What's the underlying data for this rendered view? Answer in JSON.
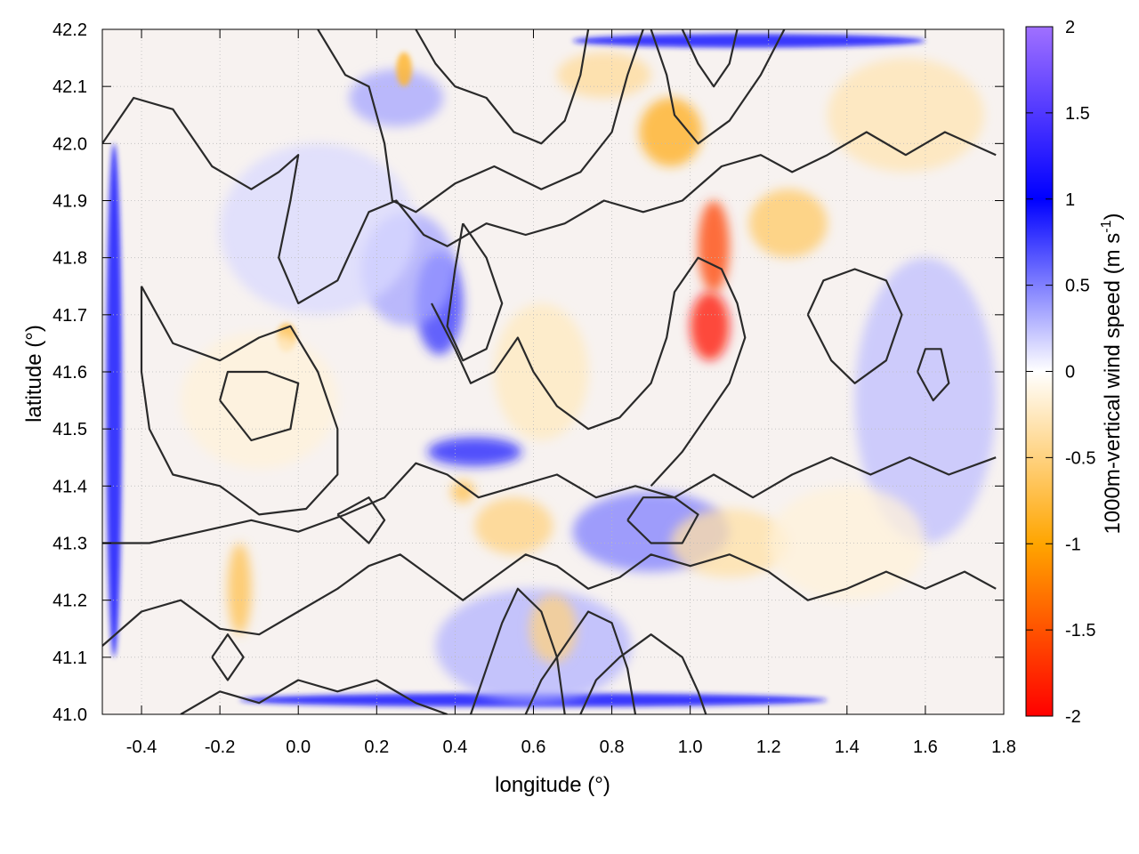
{
  "chart_data": {
    "type": "heatmap",
    "xlabel": "longitude (°)",
    "ylabel": "latitude (°)",
    "colorbar_label": "1000m-vertical wind speed (m s",
    "colorbar_label_sup": "-1",
    "colorbar_label_end": ")",
    "xlim": [
      -0.5,
      1.8
    ],
    "ylim": [
      41.0,
      42.2
    ],
    "clim": [
      -2,
      2
    ],
    "x_ticks": [
      -0.4,
      -0.2,
      0.0,
      0.2,
      0.4,
      0.6,
      0.8,
      1.0,
      1.2,
      1.4,
      1.6,
      1.8
    ],
    "x_tick_labels": [
      "-0.4",
      "-0.2",
      "0.0",
      "0.2",
      "0.4",
      "0.6",
      "0.8",
      "1.0",
      "1.2",
      "1.4",
      "1.6",
      "1.8"
    ],
    "y_ticks": [
      41.0,
      41.1,
      41.2,
      41.3,
      41.4,
      41.5,
      41.6,
      41.7,
      41.8,
      41.9,
      42.0,
      42.1,
      42.2
    ],
    "y_tick_labels": [
      "41.0",
      "41.1",
      "41.2",
      "41.3",
      "41.4",
      "41.5",
      "41.6",
      "41.7",
      "41.8",
      "41.9",
      "42.0",
      "42.1",
      "42.2"
    ],
    "colorbar_ticks": [
      -2,
      -1.5,
      -1,
      -0.5,
      0,
      0.5,
      1,
      1.5,
      2
    ],
    "colorbar_tick_labels": [
      "-2",
      "-1.5",
      "-1",
      "-0.5",
      "0",
      "0.5",
      "1",
      "1.5",
      "2"
    ],
    "colormap": [
      {
        "v": -2,
        "color": "#ff0000"
      },
      {
        "v": -1,
        "color": "#ffa500"
      },
      {
        "v": 0,
        "color": "#ffffff"
      },
      {
        "v": 1,
        "color": "#0000ff"
      },
      {
        "v": 2,
        "color": "#a070ff"
      }
    ],
    "grid": true,
    "features": [
      {
        "kind": "updraft",
        "x": -0.47,
        "y": 41.55,
        "rx": 0.02,
        "ry": 0.45,
        "value": 0.9
      },
      {
        "kind": "updraft",
        "x": 0.6,
        "y": 41.025,
        "rx": 0.75,
        "ry": 0.012,
        "value": 0.9
      },
      {
        "kind": "updraft",
        "x": 1.15,
        "y": 42.18,
        "rx": 0.45,
        "ry": 0.012,
        "value": 0.9
      },
      {
        "kind": "updraft",
        "x": 0.36,
        "y": 41.72,
        "rx": 0.06,
        "ry": 0.09,
        "value": 0.8
      },
      {
        "kind": "updraft",
        "x": 0.45,
        "y": 41.46,
        "rx": 0.12,
        "ry": 0.025,
        "value": 0.9
      },
      {
        "kind": "updraft",
        "x": 0.28,
        "y": 41.78,
        "rx": 0.12,
        "ry": 0.1,
        "value": 0.35
      },
      {
        "kind": "updraft",
        "x": 0.9,
        "y": 41.32,
        "rx": 0.2,
        "ry": 0.07,
        "value": 0.5
      },
      {
        "kind": "updraft",
        "x": 1.6,
        "y": 41.55,
        "rx": 0.18,
        "ry": 0.25,
        "value": 0.25
      },
      {
        "kind": "updraft",
        "x": 0.25,
        "y": 42.08,
        "rx": 0.12,
        "ry": 0.05,
        "value": 0.35
      },
      {
        "kind": "updraft",
        "x": 0.6,
        "y": 41.12,
        "rx": 0.25,
        "ry": 0.1,
        "value": 0.3
      },
      {
        "kind": "updraft",
        "x": 0.05,
        "y": 41.85,
        "rx": 0.25,
        "ry": 0.15,
        "value": 0.15
      },
      {
        "kind": "downdraft",
        "x": 1.05,
        "y": 41.68,
        "rx": 0.05,
        "ry": 0.06,
        "value": -1.9
      },
      {
        "kind": "downdraft",
        "x": 1.06,
        "y": 41.82,
        "rx": 0.04,
        "ry": 0.08,
        "value": -1.6
      },
      {
        "kind": "downdraft",
        "x": 0.95,
        "y": 42.02,
        "rx": 0.08,
        "ry": 0.06,
        "value": -0.9
      },
      {
        "kind": "downdraft",
        "x": 1.25,
        "y": 41.86,
        "rx": 0.1,
        "ry": 0.06,
        "value": -0.6
      },
      {
        "kind": "downdraft",
        "x": 0.78,
        "y": 42.12,
        "rx": 0.12,
        "ry": 0.04,
        "value": -0.4
      },
      {
        "kind": "downdraft",
        "x": -0.15,
        "y": 41.22,
        "rx": 0.03,
        "ry": 0.08,
        "value": -0.7
      },
      {
        "kind": "downdraft",
        "x": -0.03,
        "y": 41.66,
        "rx": 0.025,
        "ry": 0.025,
        "value": -0.7
      },
      {
        "kind": "downdraft",
        "x": 0.27,
        "y": 42.13,
        "rx": 0.02,
        "ry": 0.03,
        "value": -0.8
      },
      {
        "kind": "downdraft",
        "x": 0.55,
        "y": 41.33,
        "rx": 0.1,
        "ry": 0.05,
        "value": -0.5
      },
      {
        "kind": "downdraft",
        "x": 0.42,
        "y": 41.39,
        "rx": 0.03,
        "ry": 0.02,
        "value": -0.7
      },
      {
        "kind": "downdraft",
        "x": 1.1,
        "y": 41.3,
        "rx": 0.15,
        "ry": 0.06,
        "value": -0.35
      },
      {
        "kind": "downdraft",
        "x": 0.62,
        "y": 41.6,
        "rx": 0.12,
        "ry": 0.12,
        "value": -0.25
      },
      {
        "kind": "downdraft",
        "x": 0.65,
        "y": 41.15,
        "rx": 0.06,
        "ry": 0.06,
        "value": -0.5
      },
      {
        "kind": "downdraft",
        "x": -0.1,
        "y": 41.55,
        "rx": 0.2,
        "ry": 0.12,
        "value": -0.15
      },
      {
        "kind": "downdraft",
        "x": 1.55,
        "y": 42.05,
        "rx": 0.2,
        "ry": 0.1,
        "value": -0.3
      },
      {
        "kind": "downdraft",
        "x": 1.4,
        "y": 41.3,
        "rx": 0.2,
        "ry": 0.1,
        "value": -0.15
      }
    ],
    "contours": [
      [
        [
          -0.5,
          42.0
        ],
        [
          -0.42,
          42.08
        ],
        [
          -0.32,
          42.06
        ],
        [
          -0.22,
          41.96
        ],
        [
          -0.12,
          41.92
        ],
        [
          -0.05,
          41.95
        ],
        [
          0.0,
          41.98
        ],
        [
          -0.02,
          41.9
        ],
        [
          -0.05,
          41.8
        ],
        [
          0.0,
          41.72
        ],
        [
          0.1,
          41.76
        ],
        [
          0.18,
          41.88
        ],
        [
          0.25,
          41.9
        ],
        [
          0.32,
          41.84
        ],
        [
          0.38,
          41.82
        ],
        [
          0.48,
          41.86
        ],
        [
          0.58,
          41.84
        ],
        [
          0.68,
          41.86
        ],
        [
          0.78,
          41.9
        ],
        [
          0.88,
          41.88
        ],
        [
          0.98,
          41.9
        ],
        [
          1.08,
          41.96
        ],
        [
          1.18,
          41.98
        ],
        [
          1.26,
          41.95
        ],
        [
          1.35,
          41.98
        ],
        [
          1.45,
          42.02
        ],
        [
          1.55,
          41.98
        ],
        [
          1.65,
          42.02
        ],
        [
          1.78,
          41.98
        ]
      ],
      [
        [
          0.05,
          42.2
        ],
        [
          0.12,
          42.12
        ],
        [
          0.18,
          42.1
        ],
        [
          0.22,
          42.0
        ],
        [
          0.24,
          41.9
        ],
        [
          0.3,
          41.88
        ],
        [
          0.4,
          41.93
        ],
        [
          0.5,
          41.96
        ],
        [
          0.62,
          41.92
        ],
        [
          0.72,
          41.95
        ],
        [
          0.8,
          42.02
        ],
        [
          0.84,
          42.12
        ],
        [
          0.88,
          42.2
        ]
      ],
      [
        [
          0.3,
          42.2
        ],
        [
          0.35,
          42.14
        ],
        [
          0.4,
          42.1
        ],
        [
          0.48,
          42.08
        ],
        [
          0.55,
          42.02
        ],
        [
          0.62,
          42.0
        ],
        [
          0.68,
          42.04
        ],
        [
          0.72,
          42.12
        ],
        [
          0.74,
          42.2
        ]
      ],
      [
        [
          0.9,
          42.2
        ],
        [
          0.94,
          42.12
        ],
        [
          0.96,
          42.05
        ],
        [
          1.02,
          42.0
        ],
        [
          1.1,
          42.04
        ],
        [
          1.18,
          42.12
        ],
        [
          1.24,
          42.2
        ]
      ],
      [
        [
          0.98,
          42.2
        ],
        [
          1.02,
          42.14
        ],
        [
          1.06,
          42.1
        ],
        [
          1.1,
          42.14
        ],
        [
          1.12,
          42.2
        ]
      ],
      [
        [
          -0.4,
          41.75
        ],
        [
          -0.32,
          41.65
        ],
        [
          -0.2,
          41.62
        ],
        [
          -0.1,
          41.66
        ],
        [
          -0.02,
          41.68
        ],
        [
          0.05,
          41.6
        ],
        [
          0.1,
          41.5
        ],
        [
          0.1,
          41.42
        ],
        [
          0.02,
          41.36
        ],
        [
          -0.1,
          41.35
        ],
        [
          -0.2,
          41.4
        ],
        [
          -0.32,
          41.42
        ],
        [
          -0.38,
          41.5
        ],
        [
          -0.4,
          41.6
        ],
        [
          -0.4,
          41.75
        ]
      ],
      [
        [
          -0.2,
          41.55
        ],
        [
          -0.12,
          41.48
        ],
        [
          -0.02,
          41.5
        ],
        [
          0.0,
          41.58
        ],
        [
          -0.08,
          41.6
        ],
        [
          -0.18,
          41.6
        ],
        [
          -0.2,
          41.55
        ]
      ],
      [
        [
          -0.5,
          41.3
        ],
        [
          -0.38,
          41.3
        ],
        [
          -0.25,
          41.32
        ],
        [
          -0.12,
          41.34
        ],
        [
          0.0,
          41.32
        ],
        [
          0.12,
          41.35
        ],
        [
          0.22,
          41.38
        ],
        [
          0.3,
          41.44
        ],
        [
          0.38,
          41.42
        ],
        [
          0.46,
          41.38
        ],
        [
          0.56,
          41.4
        ],
        [
          0.66,
          41.42
        ],
        [
          0.76,
          41.38
        ],
        [
          0.86,
          41.4
        ],
        [
          0.96,
          41.38
        ],
        [
          1.06,
          41.42
        ],
        [
          1.16,
          41.38
        ],
        [
          1.26,
          41.42
        ],
        [
          1.36,
          41.45
        ],
        [
          1.46,
          41.42
        ],
        [
          1.56,
          41.45
        ],
        [
          1.66,
          41.42
        ],
        [
          1.78,
          41.45
        ]
      ],
      [
        [
          -0.5,
          41.12
        ],
        [
          -0.4,
          41.18
        ],
        [
          -0.3,
          41.2
        ],
        [
          -0.2,
          41.15
        ],
        [
          -0.1,
          41.14
        ],
        [
          0.0,
          41.18
        ],
        [
          0.1,
          41.22
        ],
        [
          0.18,
          41.26
        ],
        [
          0.26,
          41.28
        ],
        [
          0.34,
          41.24
        ],
        [
          0.42,
          41.2
        ],
        [
          0.5,
          41.24
        ],
        [
          0.58,
          41.28
        ],
        [
          0.66,
          41.26
        ],
        [
          0.74,
          41.22
        ],
        [
          0.82,
          41.24
        ],
        [
          0.9,
          41.28
        ],
        [
          1.0,
          41.26
        ],
        [
          1.1,
          41.28
        ],
        [
          1.2,
          41.25
        ],
        [
          1.3,
          41.2
        ],
        [
          1.4,
          41.22
        ],
        [
          1.5,
          41.25
        ],
        [
          1.6,
          41.22
        ],
        [
          1.7,
          41.25
        ],
        [
          1.78,
          41.22
        ]
      ],
      [
        [
          -0.3,
          41.0
        ],
        [
          -0.2,
          41.04
        ],
        [
          -0.1,
          41.02
        ],
        [
          0.0,
          41.06
        ],
        [
          0.1,
          41.04
        ],
        [
          0.2,
          41.06
        ],
        [
          0.3,
          41.02
        ],
        [
          0.38,
          41.0
        ]
      ],
      [
        [
          0.44,
          41.0
        ],
        [
          0.48,
          41.08
        ],
        [
          0.52,
          41.16
        ],
        [
          0.56,
          41.22
        ],
        [
          0.62,
          41.18
        ],
        [
          0.66,
          41.1
        ],
        [
          0.68,
          41.0
        ]
      ],
      [
        [
          0.58,
          41.0
        ],
        [
          0.62,
          41.06
        ],
        [
          0.68,
          41.12
        ],
        [
          0.74,
          41.18
        ],
        [
          0.8,
          41.16
        ],
        [
          0.84,
          41.08
        ],
        [
          0.86,
          41.0
        ]
      ],
      [
        [
          0.72,
          41.0
        ],
        [
          0.76,
          41.06
        ],
        [
          0.82,
          41.1
        ],
        [
          0.9,
          41.14
        ],
        [
          0.98,
          41.1
        ],
        [
          1.02,
          41.04
        ],
        [
          1.04,
          41.0
        ]
      ],
      [
        [
          0.34,
          41.72
        ],
        [
          0.4,
          41.64
        ],
        [
          0.44,
          41.58
        ],
        [
          0.5,
          41.6
        ],
        [
          0.56,
          41.66
        ],
        [
          0.6,
          41.6
        ],
        [
          0.66,
          41.54
        ],
        [
          0.74,
          41.5
        ],
        [
          0.82,
          41.52
        ],
        [
          0.9,
          41.58
        ],
        [
          0.94,
          41.66
        ],
        [
          0.96,
          41.74
        ],
        [
          1.02,
          41.8
        ],
        [
          1.08,
          41.78
        ],
        [
          1.12,
          41.72
        ],
        [
          1.14,
          41.66
        ],
        [
          1.1,
          41.58
        ],
        [
          1.04,
          41.52
        ],
        [
          0.98,
          41.46
        ],
        [
          0.9,
          41.4
        ]
      ],
      [
        [
          0.42,
          41.86
        ],
        [
          0.48,
          41.8
        ],
        [
          0.52,
          41.72
        ],
        [
          0.48,
          41.64
        ],
        [
          0.42,
          41.62
        ],
        [
          0.38,
          41.68
        ],
        [
          0.4,
          41.78
        ],
        [
          0.42,
          41.86
        ]
      ],
      [
        [
          1.3,
          41.7
        ],
        [
          1.36,
          41.62
        ],
        [
          1.42,
          41.58
        ],
        [
          1.5,
          41.62
        ],
        [
          1.54,
          41.7
        ],
        [
          1.5,
          41.76
        ],
        [
          1.42,
          41.78
        ],
        [
          1.34,
          41.76
        ],
        [
          1.3,
          41.7
        ]
      ],
      [
        [
          1.58,
          41.6
        ],
        [
          1.62,
          41.55
        ],
        [
          1.66,
          41.58
        ],
        [
          1.64,
          41.64
        ],
        [
          1.6,
          41.64
        ],
        [
          1.58,
          41.6
        ]
      ],
      [
        [
          0.1,
          41.35
        ],
        [
          0.18,
          41.3
        ],
        [
          0.22,
          41.34
        ],
        [
          0.18,
          41.38
        ],
        [
          0.1,
          41.35
        ]
      ],
      [
        [
          0.84,
          41.34
        ],
        [
          0.9,
          41.3
        ],
        [
          0.98,
          41.3
        ],
        [
          1.02,
          41.35
        ],
        [
          0.96,
          41.38
        ],
        [
          0.88,
          41.38
        ],
        [
          0.84,
          41.34
        ]
      ],
      [
        [
          -0.22,
          41.1
        ],
        [
          -0.18,
          41.06
        ],
        [
          -0.14,
          41.1
        ],
        [
          -0.18,
          41.14
        ],
        [
          -0.22,
          41.1
        ]
      ]
    ]
  }
}
